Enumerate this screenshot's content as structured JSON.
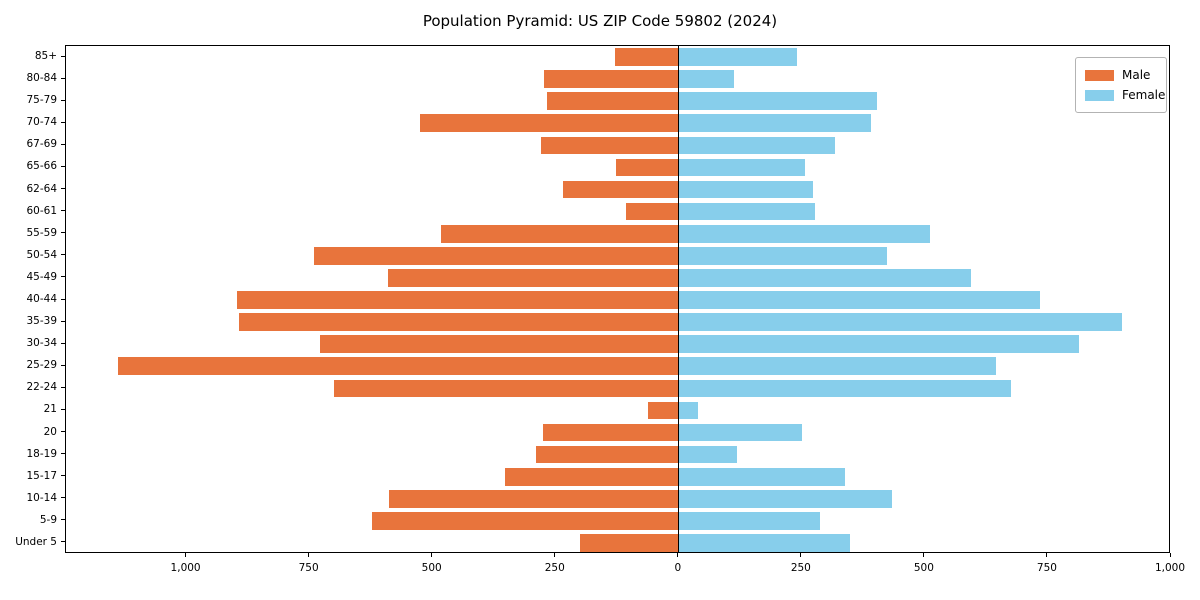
{
  "figure": {
    "title": "Population Pyramid: US ZIP Code 59802 (2024)"
  },
  "legend": {
    "items": [
      {
        "label": "Male",
        "color": "#E8743C"
      },
      {
        "label": "Female",
        "color": "#87CEEB"
      }
    ]
  },
  "chart_data": {
    "type": "bar",
    "subtype": "population-pyramid",
    "title": "Population Pyramid: US ZIP Code 59802 (2024)",
    "categories_top_to_bottom": [
      "85+",
      "80-84",
      "75-79",
      "70-74",
      "67-69",
      "65-66",
      "62-64",
      "60-61",
      "55-59",
      "50-54",
      "45-49",
      "40-44",
      "35-39",
      "30-34",
      "25-29",
      "22-24",
      "21",
      "20",
      "18-19",
      "15-17",
      "10-14",
      "5-9",
      "Under 5"
    ],
    "series": [
      {
        "name": "Male",
        "side": "left",
        "color": "#E8743C",
        "values": [
          130,
          273,
          268,
          525,
          280,
          127,
          236,
          107,
          483,
          741,
          590,
          897,
          893,
          728,
          1140,
          700,
          62,
          275,
          290,
          353,
          588,
          623,
          201
        ]
      },
      {
        "name": "Female",
        "side": "right",
        "color": "#87CEEB",
        "values": [
          241,
          112,
          402,
          391,
          318,
          257,
          272,
          277,
          510,
          424,
          593,
          733,
          901,
          813,
          644,
          674,
          39,
          250,
          118,
          337,
          433,
          286,
          347
        ]
      }
    ],
    "x_axis": {
      "xlim": [
        -1245,
        1000
      ],
      "tick_values": [
        -1000,
        -750,
        -500,
        -250,
        0,
        250,
        500,
        750,
        1000
      ],
      "tick_labels": [
        "1,000",
        "750",
        "500",
        "250",
        "0",
        "250",
        "500",
        "750",
        "1,000"
      ]
    },
    "bar_fraction": 0.8,
    "zero_line": true,
    "grid": false,
    "legend_position": "upper right"
  }
}
